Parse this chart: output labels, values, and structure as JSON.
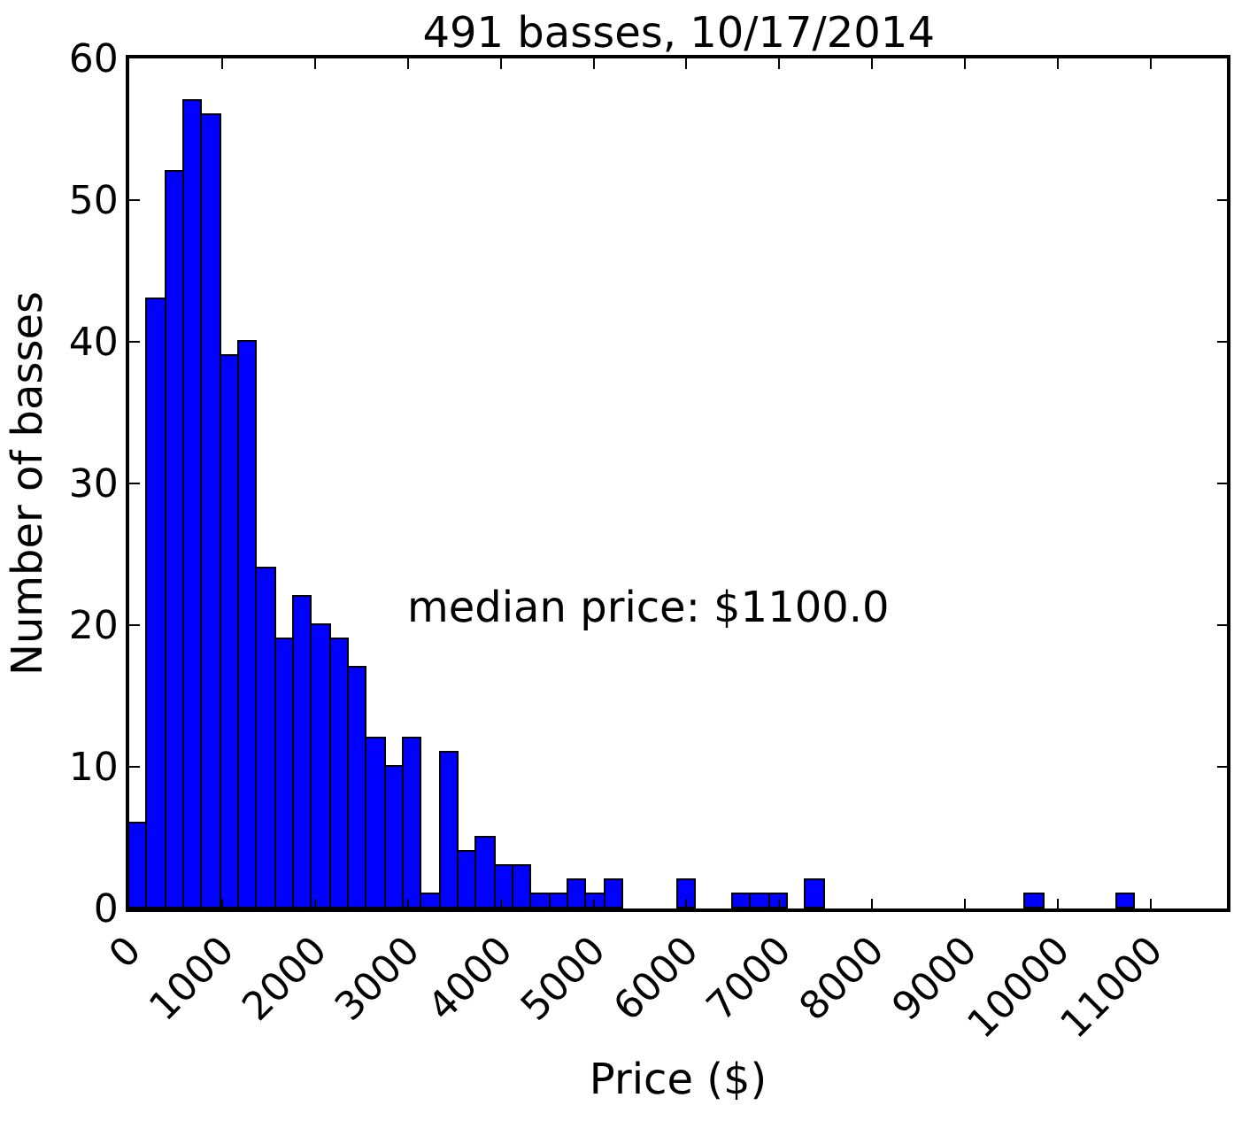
{
  "chart_data": {
    "type": "histogram",
    "title": "491 basses, 10/17/2014",
    "xlabel": "Price ($)",
    "ylabel": "Number of basses",
    "bins": [
      0,
      197,
      394,
      591,
      788,
      985,
      1182,
      1379,
      1576,
      1773,
      1970,
      2167,
      2364,
      2561,
      2758,
      2955,
      3152,
      3349,
      3546,
      3743,
      3940,
      4137,
      4334,
      4531,
      4728,
      4925,
      5122,
      5319,
      5516,
      5713,
      5910,
      6107,
      6304,
      6501,
      6698,
      6895,
      7092,
      7289,
      7486,
      7683,
      7880,
      8077,
      8274,
      8471,
      8668,
      8865,
      9062,
      9259,
      9456,
      9653,
      9850,
      10047,
      10244,
      10441,
      10638,
      10835,
      11032,
      11229,
      11426,
      11623,
      11820
    ],
    "values": [
      6,
      43,
      52,
      57,
      56,
      39,
      40,
      24,
      19,
      22,
      20,
      19,
      17,
      12,
      10,
      12,
      1,
      11,
      4,
      5,
      3,
      3,
      1,
      1,
      2,
      1,
      2,
      0,
      0,
      0,
      2,
      0,
      0,
      1,
      1,
      1,
      0,
      2,
      0,
      0,
      0,
      0,
      0,
      0,
      0,
      0,
      0,
      0,
      0,
      1,
      0,
      0,
      0,
      0,
      1,
      0,
      0,
      0,
      0,
      0
    ],
    "color": "#0000ff",
    "xlim": [
      0,
      11820
    ],
    "xticks": [
      0,
      1000,
      2000,
      3000,
      4000,
      5000,
      6000,
      7000,
      8000,
      9000,
      10000,
      11000
    ],
    "ylim": [
      0,
      60
    ],
    "yticks": [
      0,
      10,
      20,
      30,
      40,
      50,
      60
    ],
    "grid": false,
    "annotations": [
      "median price: $1100.0"
    ]
  }
}
